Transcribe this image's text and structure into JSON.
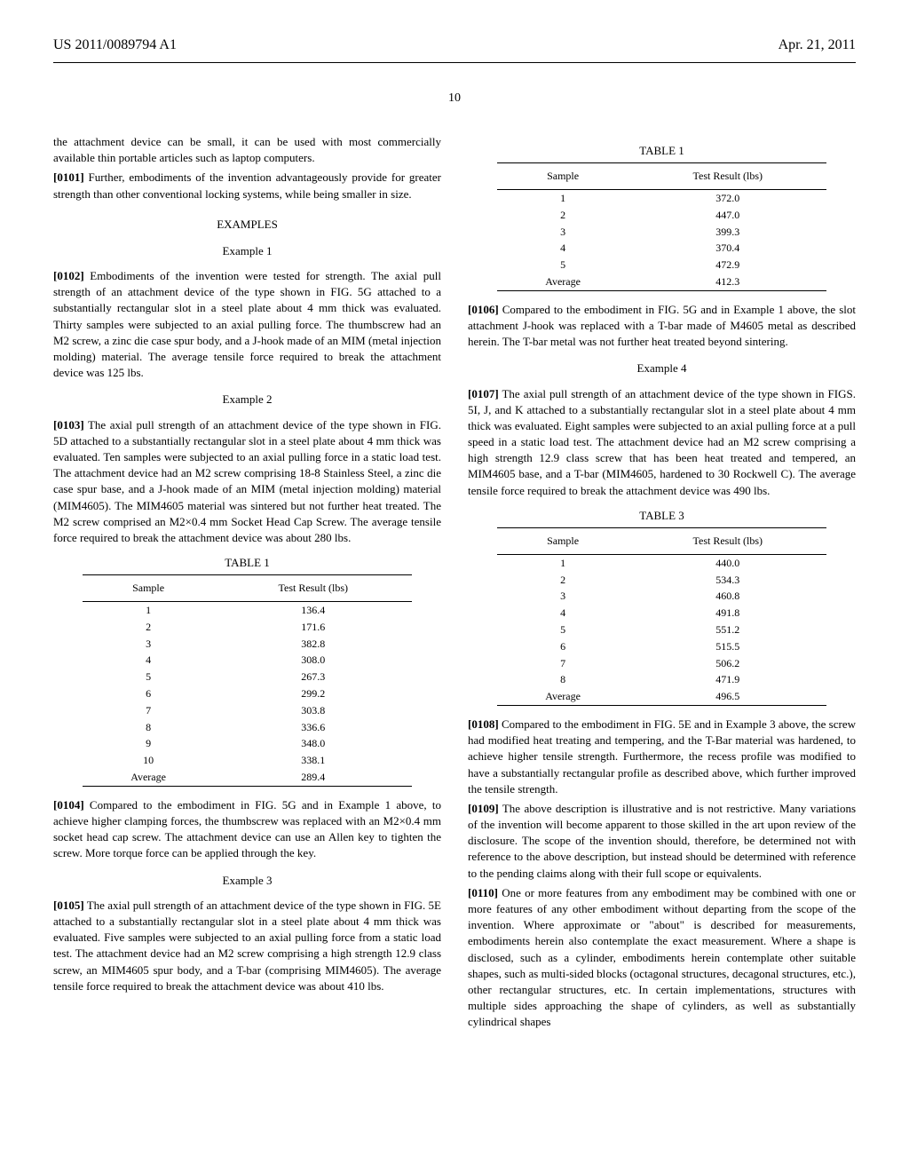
{
  "header": {
    "left": "US 2011/0089794 A1",
    "right": "Apr. 21, 2011"
  },
  "page_number": "10",
  "col1": {
    "para_intro": "the attachment device can be small, it can be used with most commercially available thin portable articles such as laptop computers.",
    "para0101_num": "[0101]",
    "para0101": " Further, embodiments of the invention advantageously provide for greater strength than other conventional locking systems, while being smaller in size.",
    "examples_title": "EXAMPLES",
    "example1_title": "Example 1",
    "para0102_num": "[0102]",
    "para0102": " Embodiments of the invention were tested for strength. The axial pull strength of an attachment device of the type shown in FIG. 5G attached to a substantially rectangular slot in a steel plate about 4 mm thick was evaluated. Thirty samples were subjected to an axial pulling force. The thumbscrew had an M2 screw, a zinc die case spur body, and a J-hook made of an MIM (metal injection molding) material. The average tensile force required to break the attachment device was 125 lbs.",
    "example2_title": "Example 2",
    "para0103_num": "[0103]",
    "para0103": " The axial pull strength of an attachment device of the type shown in FIG. 5D attached to a substantially rectangular slot in a steel plate about 4 mm thick was evaluated. Ten samples were subjected to an axial pulling force in a static load test. The attachment device had an M2 screw comprising 18-8 Stainless Steel, a zinc die case spur base, and a J-hook made of an MIM (metal injection molding) material (MIM4605). The MIM4605 material was sintered but not further heat treated. The M2 screw comprised an M2×0.4 mm Socket Head Cap Screw. The average tensile force required to break the attachment device was about 280 lbs.",
    "table1": {
      "title": "TABLE 1",
      "col1_header": "Sample",
      "col2_header": "Test Result (lbs)",
      "rows": [
        {
          "sample": "1",
          "result": "136.4"
        },
        {
          "sample": "2",
          "result": "171.6"
        },
        {
          "sample": "3",
          "result": "382.8"
        },
        {
          "sample": "4",
          "result": "308.0"
        },
        {
          "sample": "5",
          "result": "267.3"
        },
        {
          "sample": "6",
          "result": "299.2"
        },
        {
          "sample": "7",
          "result": "303.8"
        },
        {
          "sample": "8",
          "result": "336.6"
        },
        {
          "sample": "9",
          "result": "348.0"
        },
        {
          "sample": "10",
          "result": "338.1"
        },
        {
          "sample": "Average",
          "result": "289.4"
        }
      ]
    },
    "para0104_num": "[0104]",
    "para0104": " Compared to the embodiment in FIG. 5G and in Example 1 above, to achieve higher clamping forces, the thumbscrew was replaced with an M2×0.4 mm socket head cap screw. The attachment device can use an Allen key to tighten the screw. More torque force can be applied through the key.",
    "example3_title": "Example 3",
    "para0105_num": "[0105]",
    "para0105": " The axial pull strength of an attachment device of the type shown in FIG. 5E attached to a substantially rectangular slot in a steel plate about 4 mm thick was evaluated. Five samples were subjected to an axial pulling force from a static load test. The attachment device had an M2 screw comprising a high strength 12.9 class screw, an MIM4605 spur body, and a T-bar (comprising MIM4605). The average tensile force required to break the attachment device was about 410 lbs."
  },
  "col2": {
    "table1b": {
      "title": "TABLE 1",
      "col1_header": "Sample",
      "col2_header": "Test Result (lbs)",
      "rows": [
        {
          "sample": "1",
          "result": "372.0"
        },
        {
          "sample": "2",
          "result": "447.0"
        },
        {
          "sample": "3",
          "result": "399.3"
        },
        {
          "sample": "4",
          "result": "370.4"
        },
        {
          "sample": "5",
          "result": "472.9"
        },
        {
          "sample": "Average",
          "result": "412.3"
        }
      ]
    },
    "para0106_num": "[0106]",
    "para0106": " Compared to the embodiment in FIG. 5G and in Example 1 above, the slot attachment J-hook was replaced with a T-bar made of M4605 metal as described herein. The T-bar metal was not further heat treated beyond sintering.",
    "example4_title": "Example 4",
    "para0107_num": "[0107]",
    "para0107": " The axial pull strength of an attachment device of the type shown in FIGS. 5I, J, and K attached to a substantially rectangular slot in a steel plate about 4 mm thick was evaluated. Eight samples were subjected to an axial pulling force at a pull speed in a static load test. The attachment device had an M2 screw comprising a high strength 12.9 class screw that has been heat treated and tempered, an MIM4605 base, and a T-bar (MIM4605, hardened to 30 Rockwell C). The average tensile force required to break the attachment device was 490 lbs.",
    "table3": {
      "title": "TABLE 3",
      "col1_header": "Sample",
      "col2_header": "Test Result (lbs)",
      "rows": [
        {
          "sample": "1",
          "result": "440.0"
        },
        {
          "sample": "2",
          "result": "534.3"
        },
        {
          "sample": "3",
          "result": "460.8"
        },
        {
          "sample": "4",
          "result": "491.8"
        },
        {
          "sample": "5",
          "result": "551.2"
        },
        {
          "sample": "6",
          "result": "515.5"
        },
        {
          "sample": "7",
          "result": "506.2"
        },
        {
          "sample": "8",
          "result": "471.9"
        },
        {
          "sample": "Average",
          "result": "496.5"
        }
      ]
    },
    "para0108_num": "[0108]",
    "para0108": " Compared to the embodiment in FIG. 5E and in Example 3 above, the screw had modified heat treating and tempering, and the T-Bar material was hardened, to achieve higher tensile strength. Furthermore, the recess profile was modified to have a substantially rectangular profile as described above, which further improved the tensile strength.",
    "para0109_num": "[0109]",
    "para0109": " The above description is illustrative and is not restrictive. Many variations of the invention will become apparent to those skilled in the art upon review of the disclosure. The scope of the invention should, therefore, be determined not with reference to the above description, but instead should be determined with reference to the pending claims along with their full scope or equivalents.",
    "para0110_num": "[0110]",
    "para0110": " One or more features from any embodiment may be combined with one or more features of any other embodiment without departing from the scope of the invention. Where approximate or \"about\" is described for measurements, embodiments herein also contemplate the exact measurement. Where a shape is disclosed, such as a cylinder, embodiments herein contemplate other suitable shapes, such as multi-sided blocks (octagonal structures, decagonal structures, etc.), other rectangular structures, etc. In certain implementations, structures with multiple sides approaching the shape of cylinders, as well as substantially cylindrical shapes"
  }
}
